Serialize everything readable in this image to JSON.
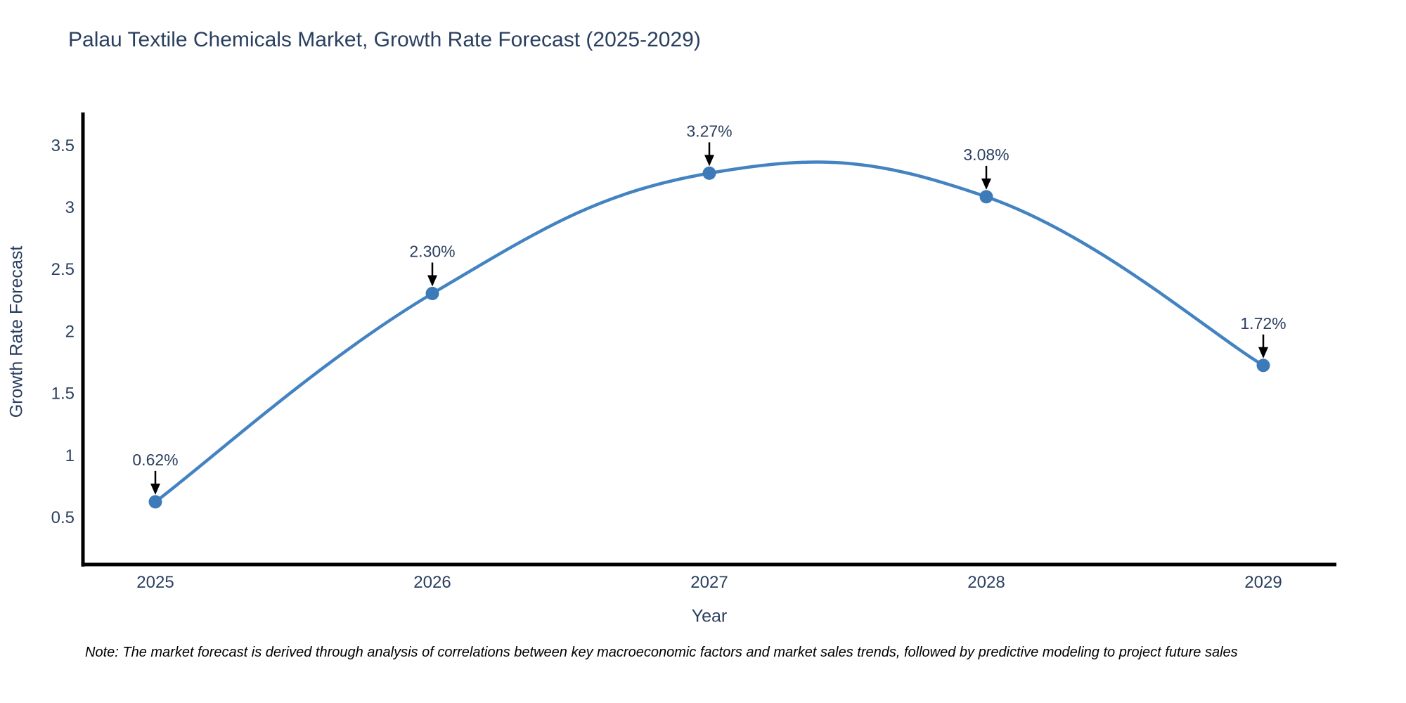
{
  "figure": {
    "title": "Palau Textile Chemicals Market, Growth Rate Forecast (2025-2029)",
    "note": "Note: The market forecast is derived through analysis of correlations between key macroeconomic factors and market sales trends, followed by predictive modeling to project future sales"
  },
  "chart_data": {
    "type": "line",
    "title": "Palau Textile Chemicals Market, Growth Rate Forecast (2025-2029)",
    "xlabel": "Year",
    "ylabel": "Growth Rate Forecast",
    "x": [
      2025,
      2026,
      2027,
      2028,
      2029
    ],
    "values": [
      0.62,
      2.3,
      3.27,
      3.08,
      1.72
    ],
    "point_labels": [
      "0.62%",
      "2.30%",
      "3.27%",
      "3.08%",
      "1.72%"
    ],
    "series_name": "Growth Rate Forecast",
    "yticks": [
      0.5,
      1,
      1.5,
      2,
      2.5,
      3,
      3.5
    ],
    "ylim": [
      0.12,
      3.76
    ],
    "xlim": [
      2024.73,
      2029.27
    ],
    "grid": false,
    "legend_position": "none",
    "line_shape": "spline",
    "annotation_note": "Note: The market forecast is derived through analysis of correlations between key macroeconomic factors and market sales trends, followed by predictive modeling to project future sales",
    "colors": {
      "line": "#4383c2",
      "marker": "#3c7bb8",
      "axis": "#000000",
      "tick_text": "#2a3f5f",
      "annotation_text": "#2a3f5f",
      "annotation_arrow": "#000000",
      "background": "#ffffff"
    }
  }
}
